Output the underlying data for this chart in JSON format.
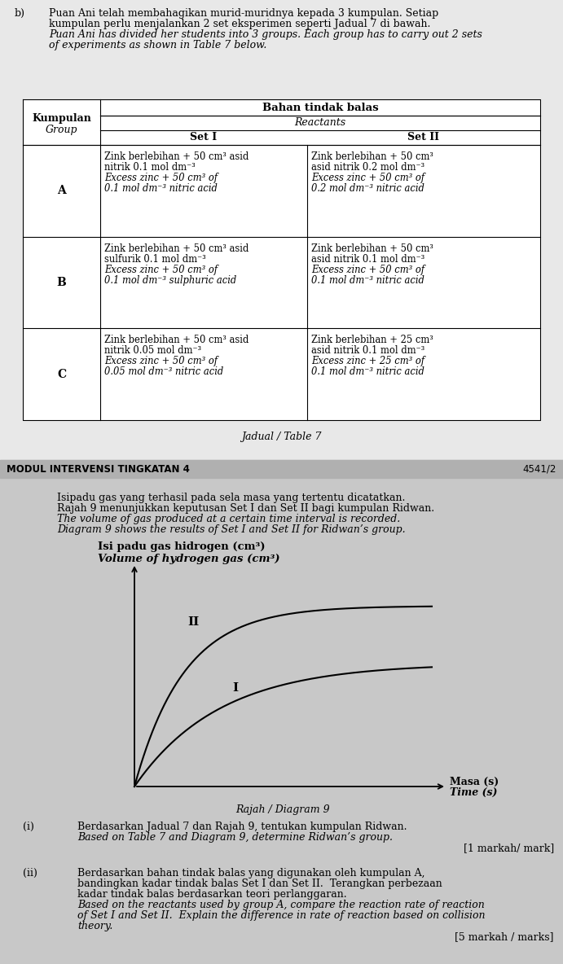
{
  "top_bg": "#e8e8e8",
  "bottom_bg": "#c8c8c8",
  "bar_bg": "#b0b0b0",
  "white": "#ffffff",
  "black": "#000000",
  "section_b": "b)",
  "intro_text_line1": "Puan Ani telah membahagikan murid-muridnya kepada 3 kumpulan. Setiap",
  "intro_text_line2": "kumpulan perlu menjalankan 2 set eksperimen seperti Jadual 7 di bawah.",
  "intro_text_line3": "Puan Ani has divided her students into 3 groups. Each group has to carry out 2 sets",
  "intro_text_line4": "of experiments as shown in Table 7 below.",
  "table_header_bahan": "Bahan tindak balas",
  "table_header_reactants": "Reactants",
  "table_col_kumpulan": "Kumpulan",
  "table_col_group": "Group",
  "table_col_set1": "Set I",
  "table_col_set2": "Set II",
  "table_rows": [
    {
      "group": "A",
      "set1": [
        "Zink berlebihan + 50 cm³ asid",
        "nitrik 0.1 mol dm⁻³",
        "Excess zinc + 50 cm³ of",
        "0.1 mol dm⁻³ nitric acid"
      ],
      "set1_italic": [
        false,
        false,
        true,
        true
      ],
      "set2": [
        "Zink berlebihan + 50 cm³",
        "asid nitrik 0.2 mol dm⁻³",
        "Excess zinc + 50 cm³ of",
        "0.2 mol dm⁻³ nitric acid"
      ],
      "set2_italic": [
        false,
        false,
        true,
        true
      ]
    },
    {
      "group": "B",
      "set1": [
        "Zink berlebihan + 50 cm³ asid",
        "sulfurik 0.1 mol dm⁻³",
        "Excess zinc + 50 cm³ of",
        "0.1 mol dm⁻³ sulphuric acid"
      ],
      "set1_italic": [
        false,
        false,
        true,
        true
      ],
      "set2": [
        "Zink berlebihan + 50 cm³",
        "asid nitrik 0.1 mol dm⁻³",
        "Excess zinc + 50 cm³ of",
        "0.1 mol dm⁻³ nitric acid"
      ],
      "set2_italic": [
        false,
        false,
        true,
        true
      ]
    },
    {
      "group": "C",
      "set1": [
        "Zink berlebihan + 50 cm³ asid",
        "nitrik 0.05 mol dm⁻³",
        "Excess zinc + 50 cm³ of",
        "0.05 mol dm⁻³ nitric acid"
      ],
      "set1_italic": [
        false,
        false,
        true,
        true
      ],
      "set2": [
        "Zink berlebihan + 25 cm³",
        "asid nitrik 0.1 mol dm⁻³",
        "Excess zinc + 25 cm³ of",
        "0.1 mol dm⁻³ nitric acid"
      ],
      "set2_italic": [
        false,
        false,
        true,
        true
      ]
    }
  ],
  "table_caption": "Jadual / Table 7",
  "module_label": "MODUL INTERVENSI TINGKATAN 4",
  "module_code": "4541/2",
  "para1": "Isipadu gas yang terhasil pada sela masa yang tertentu dicatatkan.",
  "para2": "Rajah 9 menunjukkan keputusan Set I dan Set II bagi kumpulan Ridwan.",
  "para3": "The volume of gas produced at a certain time interval is recorded.",
  "para4": "Diagram 9 shows the results of Set I and Set II for Ridwan’s group.",
  "graph_ylabel1": "Isi padu gas hidrogen (cm³)",
  "graph_ylabel2": "Volume of hydrogen gas (cm³)",
  "graph_xlabel1": "Masa (s)",
  "graph_xlabel2": "Time (s)",
  "graph_label_II": "II",
  "graph_label_I": "I",
  "graph_caption": "Rajah / Diagram 9",
  "qi_num": "(i)",
  "qi_line1": "Berdasarkan Jadual 7 dan Rajah 9, tentukan kumpulan Ridwan.",
  "qi_line2": "Based on Table 7 and Diagram 9, determine Ridwan’s group.",
  "qi_marks": "[1 markah/ mark]",
  "qii_num": "(ii)",
  "qii_line1": "Berdasarkan bahan tindak balas yang digunakan oleh kumpulan A,",
  "qii_line2": "bandingkan kadar tindak balas Set I dan Set II.  Terangkan perbezaan",
  "qii_line3": "kadar tindak balas berdasarkan teori perlanggaran.",
  "qii_line4": "Based on the reactants used by group A, compare the reaction rate of reaction",
  "qii_line5": "of Set I and Set II.  Explain the difference in rate of reaction based on collision",
  "qii_line6": "theory.",
  "qii_marks": "[5 markah / marks]"
}
